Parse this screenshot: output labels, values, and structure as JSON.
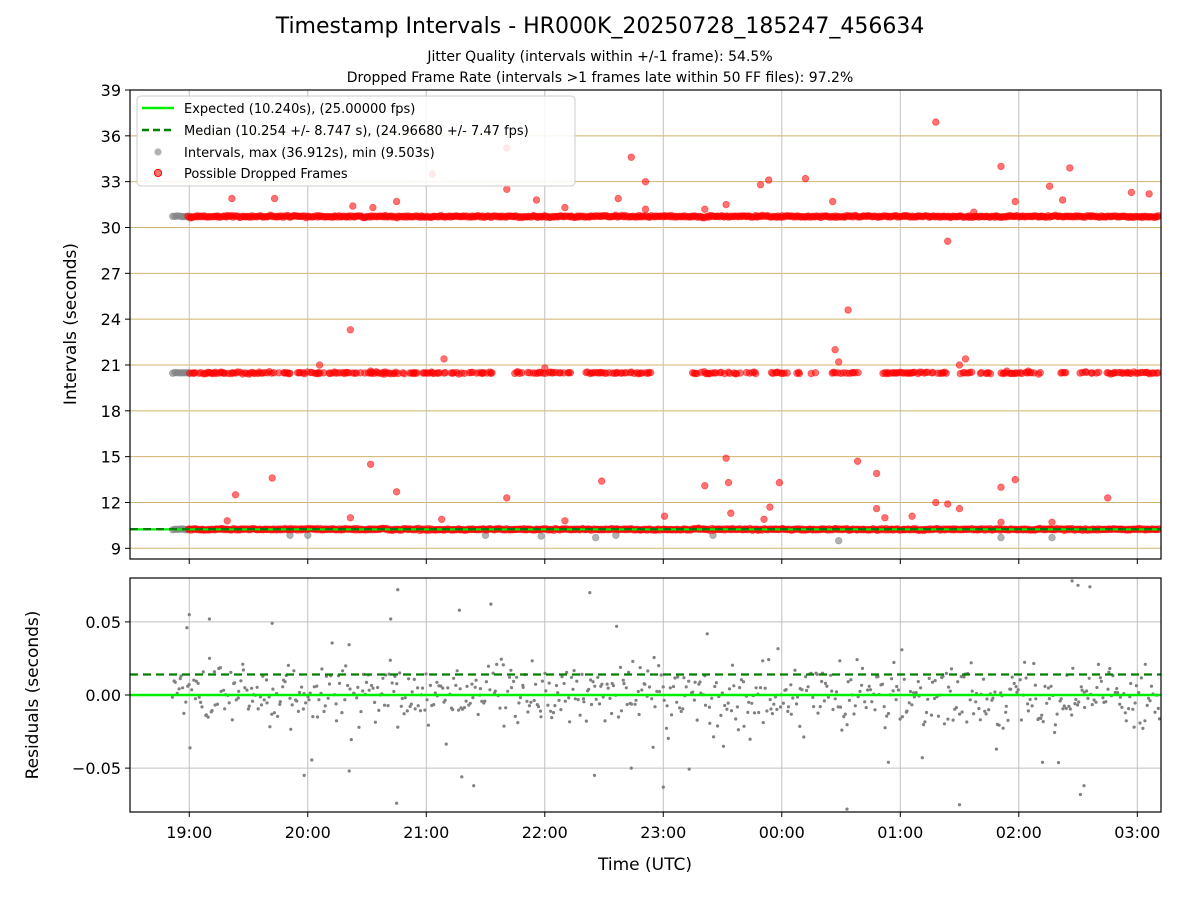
{
  "header": {
    "title": "Timestamp Intervals - HR000K_20250728_185247_456634",
    "subtitle_1": "Jitter Quality (intervals within +/-1 frame): 54.5%",
    "subtitle_2": "Dropped Frame Rate (intervals >1 frames late within 50 FF files): 97.2%"
  },
  "colors": {
    "expected": "#00ee00",
    "median": "#007f00",
    "intervals": "#808080",
    "dropped": "#ff0000",
    "frame_grid": "#d2b46b",
    "time_grid": "#c0c0c0"
  },
  "chart_data": [
    {
      "type": "scatter",
      "panel": "top",
      "ylabel": "Intervals (seconds)",
      "xlabel": "",
      "xlim_hours": [
        18.5,
        27.2
      ],
      "ylim": [
        8.3,
        39
      ],
      "yticks": [
        9,
        12,
        15,
        18,
        21,
        24,
        27,
        30,
        33,
        36,
        39
      ],
      "grid": true,
      "legend_position": "top-left",
      "legend": [
        {
          "label": "Expected (10.240s), (25.00000 fps)",
          "style": "line"
        },
        {
          "label": "Median (10.254 +/- 8.747 s), (24.96680 +/- 7.47 fps)",
          "style": "dashed"
        },
        {
          "label": "Intervals, max (36.912s), min (9.503s)",
          "style": "gray-dot"
        },
        {
          "label": "Possible Dropped Frames",
          "style": "red-dot"
        }
      ],
      "expected_interval": 10.24,
      "median_interval": 10.254,
      "frame_levels": [
        9.216,
        10.24,
        20.48,
        30.72
      ],
      "x_range_hours": [
        18.86,
        27.19
      ],
      "bands": [
        {
          "name": "1 frame",
          "level": 10.24,
          "coverage": "continuous"
        },
        {
          "name": "2 frames",
          "level": 20.48,
          "coverage": "gapped"
        },
        {
          "name": "3 frames",
          "level": 30.72,
          "coverage": "continuous"
        }
      ],
      "outliers": [
        [
          19.36,
          31.9
        ],
        [
          19.72,
          31.9
        ],
        [
          20.38,
          31.4
        ],
        [
          20.55,
          31.3
        ],
        [
          20.75,
          31.7
        ],
        [
          21.05,
          33.5
        ],
        [
          21.68,
          35.2
        ],
        [
          21.68,
          32.5
        ],
        [
          21.93,
          31.8
        ],
        [
          22.17,
          31.3
        ],
        [
          22.62,
          31.9
        ],
        [
          22.73,
          34.6
        ],
        [
          22.85,
          33.0
        ],
        [
          22.85,
          31.2
        ],
        [
          23.35,
          31.2
        ],
        [
          23.53,
          31.5
        ],
        [
          23.82,
          32.8
        ],
        [
          23.89,
          33.1
        ],
        [
          24.2,
          33.2
        ],
        [
          24.43,
          31.7
        ],
        [
          25.3,
          36.9
        ],
        [
          25.4,
          29.1
        ],
        [
          25.62,
          31.0
        ],
        [
          25.85,
          34.0
        ],
        [
          25.97,
          31.7
        ],
        [
          26.26,
          32.7
        ],
        [
          26.37,
          31.8
        ],
        [
          26.43,
          33.9
        ],
        [
          26.95,
          32.3
        ],
        [
          27.1,
          32.2
        ],
        [
          20.36,
          23.3
        ],
        [
          20.53,
          20.6
        ],
        [
          20.1,
          21.0
        ],
        [
          21.15,
          21.4
        ],
        [
          22.0,
          20.8
        ],
        [
          24.45,
          22.0
        ],
        [
          24.48,
          21.2
        ],
        [
          24.56,
          24.6
        ],
        [
          25.5,
          21.0
        ],
        [
          25.55,
          21.4
        ],
        [
          25.9,
          20.6
        ],
        [
          26.08,
          20.6
        ],
        [
          19.39,
          12.5
        ],
        [
          19.7,
          13.6
        ],
        [
          19.32,
          10.8
        ],
        [
          20.36,
          11.0
        ],
        [
          20.53,
          14.5
        ],
        [
          20.75,
          12.7
        ],
        [
          21.13,
          10.9
        ],
        [
          21.68,
          12.3
        ],
        [
          22.17,
          10.8
        ],
        [
          22.48,
          13.4
        ],
        [
          23.01,
          11.1
        ],
        [
          23.35,
          13.1
        ],
        [
          23.53,
          14.9
        ],
        [
          23.55,
          13.3
        ],
        [
          23.57,
          11.3
        ],
        [
          23.85,
          10.9
        ],
        [
          23.9,
          11.7
        ],
        [
          23.98,
          13.3
        ],
        [
          24.64,
          14.7
        ],
        [
          24.8,
          13.9
        ],
        [
          24.8,
          11.6
        ],
        [
          24.87,
          11.0
        ],
        [
          25.1,
          11.1
        ],
        [
          25.3,
          12.0
        ],
        [
          25.4,
          11.9
        ],
        [
          25.5,
          11.6
        ],
        [
          25.85,
          13.0
        ],
        [
          25.85,
          10.7
        ],
        [
          25.97,
          13.5
        ],
        [
          26.28,
          10.7
        ],
        [
          26.75,
          12.3
        ]
      ],
      "gray_low_points": [
        [
          19.85,
          9.85
        ],
        [
          20.0,
          9.85
        ],
        [
          21.5,
          9.85
        ],
        [
          21.97,
          9.8
        ],
        [
          22.43,
          9.7
        ],
        [
          22.6,
          9.85
        ],
        [
          23.42,
          9.85
        ],
        [
          24.48,
          9.5
        ],
        [
          25.85,
          9.7
        ],
        [
          26.28,
          9.7
        ]
      ]
    },
    {
      "type": "scatter",
      "panel": "bottom",
      "ylabel": "Residuals (seconds)",
      "xlabel": "Time (UTC)",
      "xlim_hours": [
        18.5,
        27.2
      ],
      "ylim": [
        -0.08,
        0.08
      ],
      "yticks": [
        {
          "value": 0.05,
          "label": "0.05"
        },
        {
          "value": 0.0,
          "label": "0.00"
        },
        {
          "value": -0.05,
          "label": "−0.05"
        }
      ],
      "xticks": [
        {
          "hour": 19,
          "label": "19:00"
        },
        {
          "hour": 20,
          "label": "20:00"
        },
        {
          "hour": 21,
          "label": "21:00"
        },
        {
          "hour": 22,
          "label": "22:00"
        },
        {
          "hour": 23,
          "label": "23:00"
        },
        {
          "hour": 24,
          "label": "00:00"
        },
        {
          "hour": 25,
          "label": "01:00"
        },
        {
          "hour": 26,
          "label": "02:00"
        },
        {
          "hour": 27,
          "label": "03:00"
        }
      ],
      "expected_residual": 0.0,
      "median_residual": 0.014,
      "grid": true,
      "typical_spread": 0.018,
      "x_range_hours": [
        18.86,
        27.19
      ],
      "outliers": [
        [
          18.98,
          0.046
        ],
        [
          19.0,
          0.055
        ],
        [
          19.17,
          0.052
        ],
        [
          19.7,
          0.049
        ],
        [
          20.76,
          0.072
        ],
        [
          20.7,
          0.052
        ],
        [
          21.28,
          0.058
        ],
        [
          22.38,
          0.07
        ],
        [
          23.0,
          -0.063
        ],
        [
          24.55,
          -0.078
        ],
        [
          25.5,
          -0.075
        ],
        [
          26.45,
          0.078
        ],
        [
          26.5,
          0.075
        ],
        [
          26.55,
          -0.062
        ],
        [
          26.6,
          0.074
        ],
        [
          26.52,
          -0.068
        ],
        [
          21.3,
          -0.056
        ],
        [
          21.4,
          -0.062
        ],
        [
          20.75,
          -0.074
        ],
        [
          20.35,
          -0.052
        ],
        [
          22.42,
          -0.055
        ],
        [
          22.73,
          -0.05
        ],
        [
          19.97,
          -0.055
        ],
        [
          24.9,
          -0.046
        ],
        [
          26.2,
          -0.046
        ]
      ]
    }
  ]
}
